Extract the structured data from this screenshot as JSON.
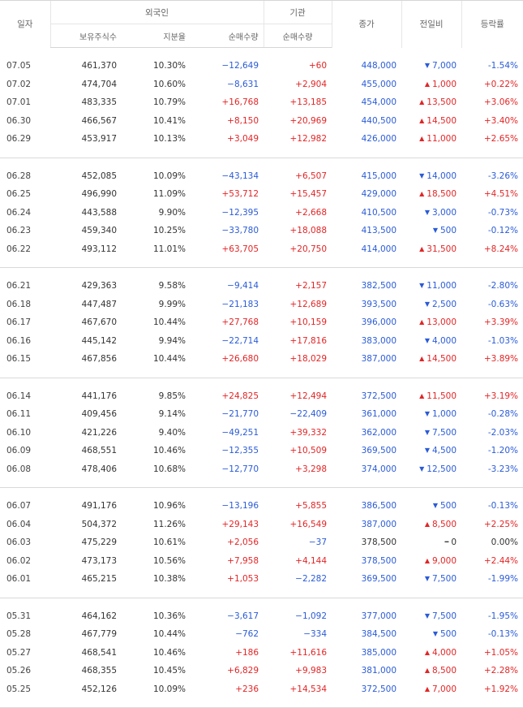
{
  "headers": {
    "date": "일자",
    "foreign": "외국인",
    "institution": "기관",
    "close": "종가",
    "change": "전일비",
    "rate": "등락률",
    "holdings": "보유주식수",
    "share": "지분율",
    "foreign_net": "순매수량",
    "inst_net": "순매수량"
  },
  "colors": {
    "up": "#e22526",
    "down": "#2a5bd7",
    "flat": "#333333"
  },
  "groups": [
    [
      {
        "date": "07.05",
        "holdings": "461,370",
        "share": "10.30%",
        "foreign_net": "−12,649",
        "inst_net": "+60",
        "close": "448,000",
        "dir": "down",
        "change": "7,000",
        "rate": "-1.54%"
      },
      {
        "date": "07.02",
        "holdings": "474,704",
        "share": "10.60%",
        "foreign_net": "−8,631",
        "inst_net": "+2,904",
        "close": "455,000",
        "dir": "up",
        "change": "1,000",
        "rate": "+0.22%"
      },
      {
        "date": "07.01",
        "holdings": "483,335",
        "share": "10.79%",
        "foreign_net": "+16,768",
        "inst_net": "+13,185",
        "close": "454,000",
        "dir": "up",
        "change": "13,500",
        "rate": "+3.06%"
      },
      {
        "date": "06.30",
        "holdings": "466,567",
        "share": "10.41%",
        "foreign_net": "+8,150",
        "inst_net": "+20,969",
        "close": "440,500",
        "dir": "up",
        "change": "14,500",
        "rate": "+3.40%"
      },
      {
        "date": "06.29",
        "holdings": "453,917",
        "share": "10.13%",
        "foreign_net": "+3,049",
        "inst_net": "+12,982",
        "close": "426,000",
        "dir": "up",
        "change": "11,000",
        "rate": "+2.65%"
      }
    ],
    [
      {
        "date": "06.28",
        "holdings": "452,085",
        "share": "10.09%",
        "foreign_net": "−43,134",
        "inst_net": "+6,507",
        "close": "415,000",
        "dir": "down",
        "change": "14,000",
        "rate": "-3.26%"
      },
      {
        "date": "06.25",
        "holdings": "496,990",
        "share": "11.09%",
        "foreign_net": "+53,712",
        "inst_net": "+15,457",
        "close": "429,000",
        "dir": "up",
        "change": "18,500",
        "rate": "+4.51%"
      },
      {
        "date": "06.24",
        "holdings": "443,588",
        "share": "9.90%",
        "foreign_net": "−12,395",
        "inst_net": "+2,668",
        "close": "410,500",
        "dir": "down",
        "change": "3,000",
        "rate": "-0.73%"
      },
      {
        "date": "06.23",
        "holdings": "459,340",
        "share": "10.25%",
        "foreign_net": "−33,780",
        "inst_net": "+18,088",
        "close": "413,500",
        "dir": "down",
        "change": "500",
        "rate": "-0.12%"
      },
      {
        "date": "06.22",
        "holdings": "493,112",
        "share": "11.01%",
        "foreign_net": "+63,705",
        "inst_net": "+20,750",
        "close": "414,000",
        "dir": "up",
        "change": "31,500",
        "rate": "+8.24%"
      }
    ],
    [
      {
        "date": "06.21",
        "holdings": "429,363",
        "share": "9.58%",
        "foreign_net": "−9,414",
        "inst_net": "+2,157",
        "close": "382,500",
        "dir": "down",
        "change": "11,000",
        "rate": "-2.80%"
      },
      {
        "date": "06.18",
        "holdings": "447,487",
        "share": "9.99%",
        "foreign_net": "−21,183",
        "inst_net": "+12,689",
        "close": "393,500",
        "dir": "down",
        "change": "2,500",
        "rate": "-0.63%"
      },
      {
        "date": "06.17",
        "holdings": "467,670",
        "share": "10.44%",
        "foreign_net": "+27,768",
        "inst_net": "+10,159",
        "close": "396,000",
        "dir": "up",
        "change": "13,000",
        "rate": "+3.39%"
      },
      {
        "date": "06.16",
        "holdings": "445,142",
        "share": "9.94%",
        "foreign_net": "−22,714",
        "inst_net": "+17,816",
        "close": "383,000",
        "dir": "down",
        "change": "4,000",
        "rate": "-1.03%"
      },
      {
        "date": "06.15",
        "holdings": "467,856",
        "share": "10.44%",
        "foreign_net": "+26,680",
        "inst_net": "+18,029",
        "close": "387,000",
        "dir": "up",
        "change": "14,500",
        "rate": "+3.89%"
      }
    ],
    [
      {
        "date": "06.14",
        "holdings": "441,176",
        "share": "9.85%",
        "foreign_net": "+24,825",
        "inst_net": "+12,494",
        "close": "372,500",
        "dir": "up",
        "change": "11,500",
        "rate": "+3.19%"
      },
      {
        "date": "06.11",
        "holdings": "409,456",
        "share": "9.14%",
        "foreign_net": "−21,770",
        "inst_net": "−22,409",
        "close": "361,000",
        "dir": "down",
        "change": "1,000",
        "rate": "-0.28%"
      },
      {
        "date": "06.10",
        "holdings": "421,226",
        "share": "9.40%",
        "foreign_net": "−49,251",
        "inst_net": "+39,332",
        "close": "362,000",
        "dir": "down",
        "change": "7,500",
        "rate": "-2.03%"
      },
      {
        "date": "06.09",
        "holdings": "468,551",
        "share": "10.46%",
        "foreign_net": "−12,355",
        "inst_net": "+10,509",
        "close": "369,500",
        "dir": "down",
        "change": "4,500",
        "rate": "-1.20%"
      },
      {
        "date": "06.08",
        "holdings": "478,406",
        "share": "10.68%",
        "foreign_net": "−12,770",
        "inst_net": "+3,298",
        "close": "374,000",
        "dir": "down",
        "change": "12,500",
        "rate": "-3.23%"
      }
    ],
    [
      {
        "date": "06.07",
        "holdings": "491,176",
        "share": "10.96%",
        "foreign_net": "−13,196",
        "inst_net": "+5,855",
        "close": "386,500",
        "dir": "down",
        "change": "500",
        "rate": "-0.13%"
      },
      {
        "date": "06.04",
        "holdings": "504,372",
        "share": "11.26%",
        "foreign_net": "+29,143",
        "inst_net": "+16,549",
        "close": "387,000",
        "dir": "up",
        "change": "8,500",
        "rate": "+2.25%"
      },
      {
        "date": "06.03",
        "holdings": "475,229",
        "share": "10.61%",
        "foreign_net": "+2,056",
        "inst_net": "−37",
        "close": "378,500",
        "dir": "flat",
        "change": "0",
        "rate": "0.00%"
      },
      {
        "date": "06.02",
        "holdings": "473,173",
        "share": "10.56%",
        "foreign_net": "+7,958",
        "inst_net": "+4,144",
        "close": "378,500",
        "dir": "up",
        "change": "9,000",
        "rate": "+2.44%"
      },
      {
        "date": "06.01",
        "holdings": "465,215",
        "share": "10.38%",
        "foreign_net": "+1,053",
        "inst_net": "−2,282",
        "close": "369,500",
        "dir": "down",
        "change": "7,500",
        "rate": "-1.99%"
      }
    ],
    [
      {
        "date": "05.31",
        "holdings": "464,162",
        "share": "10.36%",
        "foreign_net": "−3,617",
        "inst_net": "−1,092",
        "close": "377,000",
        "dir": "down",
        "change": "7,500",
        "rate": "-1.95%"
      },
      {
        "date": "05.28",
        "holdings": "467,779",
        "share": "10.44%",
        "foreign_net": "−762",
        "inst_net": "−334",
        "close": "384,500",
        "dir": "down",
        "change": "500",
        "rate": "-0.13%"
      },
      {
        "date": "05.27",
        "holdings": "468,541",
        "share": "10.46%",
        "foreign_net": "+186",
        "inst_net": "+11,616",
        "close": "385,000",
        "dir": "up",
        "change": "4,000",
        "rate": "+1.05%"
      },
      {
        "date": "05.26",
        "holdings": "468,355",
        "share": "10.45%",
        "foreign_net": "+6,829",
        "inst_net": "+9,983",
        "close": "381,000",
        "dir": "up",
        "change": "8,500",
        "rate": "+2.28%"
      },
      {
        "date": "05.25",
        "holdings": "452,126",
        "share": "10.09%",
        "foreign_net": "+236",
        "inst_net": "+14,534",
        "close": "372,500",
        "dir": "up",
        "change": "7,000",
        "rate": "+1.92%"
      }
    ]
  ]
}
